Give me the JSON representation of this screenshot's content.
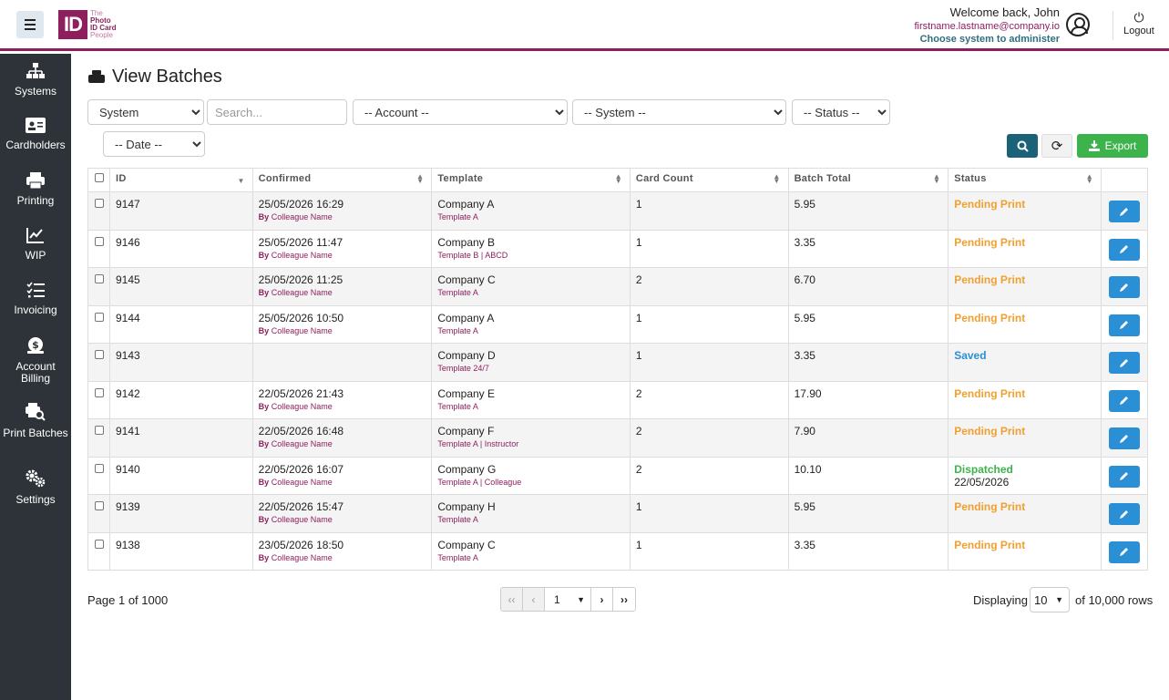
{
  "header": {
    "logo_letters": "ID",
    "logo_lines": [
      "The",
      "Photo",
      "ID Card",
      "People"
    ],
    "welcome": "Welcome back, John",
    "email": "firstname.lastname@company.io",
    "choose_system": "Choose system to administer",
    "logout_label": "Logout"
  },
  "sidebar": {
    "items": [
      {
        "label": "Systems",
        "icon": "sitemap-icon"
      },
      {
        "label": "Cardholders",
        "icon": "id-card-icon"
      },
      {
        "label": "Printing",
        "icon": "printer-icon"
      },
      {
        "label": "WIP",
        "icon": "line-chart-icon"
      },
      {
        "label": "Invoicing",
        "icon": "checklist-icon"
      },
      {
        "label": "Account Billing",
        "icon": "money-bag-icon"
      },
      {
        "label": "Print Batches",
        "icon": "print-search-icon"
      },
      {
        "label": "Settings",
        "icon": "gears-icon"
      }
    ]
  },
  "page": {
    "title": "View Batches"
  },
  "filters": {
    "search_field": "System",
    "search_placeholder": "Search...",
    "account": "-- Account --",
    "system": "-- System --",
    "status": "-- Status --",
    "date": "-- Date --",
    "export_label": "Export"
  },
  "table": {
    "columns": [
      "ID",
      "Confirmed",
      "Template",
      "Card Count",
      "Batch Total",
      "Status"
    ],
    "by_prefix": "By",
    "rows": [
      {
        "id": "9147",
        "confirmed": "25/05/2026 16:29",
        "by": "Colleague Name",
        "company": "Company A",
        "template": "Template A",
        "count": "1",
        "total": "5.95",
        "status": "Pending Print",
        "status_date": ""
      },
      {
        "id": "9146",
        "confirmed": "25/05/2026 11:47",
        "by": "Colleague Name",
        "company": "Company B",
        "template": "Template B | ABCD",
        "count": "1",
        "total": "3.35",
        "status": "Pending Print",
        "status_date": ""
      },
      {
        "id": "9145",
        "confirmed": "25/05/2026 11:25",
        "by": "Colleague Name",
        "company": "Company C",
        "template": "Template A",
        "count": "2",
        "total": "6.70",
        "status": "Pending Print",
        "status_date": ""
      },
      {
        "id": "9144",
        "confirmed": "25/05/2026 10:50",
        "by": "Colleague Name",
        "company": "Company A",
        "template": "Template A",
        "count": "1",
        "total": "5.95",
        "status": "Pending Print",
        "status_date": ""
      },
      {
        "id": "9143",
        "confirmed": "",
        "by": "",
        "company": "Company D",
        "template": "Template 24/7",
        "count": "1",
        "total": "3.35",
        "status": "Saved",
        "status_date": ""
      },
      {
        "id": "9142",
        "confirmed": "22/05/2026 21:43",
        "by": "Colleague Name",
        "company": "Company E",
        "template": "Template A",
        "count": "2",
        "total": "17.90",
        "status": "Pending Print",
        "status_date": ""
      },
      {
        "id": "9141",
        "confirmed": "22/05/2026 16:48",
        "by": "Colleague Name",
        "company": "Company F",
        "template": "Template A | Instructor",
        "count": "2",
        "total": "7.90",
        "status": "Pending Print",
        "status_date": ""
      },
      {
        "id": "9140",
        "confirmed": "22/05/2026 16:07",
        "by": "Colleague Name",
        "company": "Company G",
        "template": "Template A | Colleague",
        "count": "2",
        "total": "10.10",
        "status": "Dispatched",
        "status_date": "22/05/2026"
      },
      {
        "id": "9139",
        "confirmed": "22/05/2026 15:47",
        "by": "Colleague Name",
        "company": "Company H",
        "template": "Template A",
        "count": "1",
        "total": "5.95",
        "status": "Pending Print",
        "status_date": ""
      },
      {
        "id": "9138",
        "confirmed": "23/05/2026 18:50",
        "by": "Colleague Name",
        "company": "Company C",
        "template": "Template A",
        "count": "1",
        "total": "3.35",
        "status": "Pending Print",
        "status_date": ""
      }
    ]
  },
  "status_colors": {
    "Pending Print": "#f0a030",
    "Saved": "#2b8fd6",
    "Dispatched": "#3cb44b"
  },
  "pagination": {
    "page_info": "Page 1 of 1000",
    "current_page": "1",
    "displaying_label": "Displaying",
    "rows_per_page": "10",
    "of_rows": "of 10,000 rows"
  }
}
